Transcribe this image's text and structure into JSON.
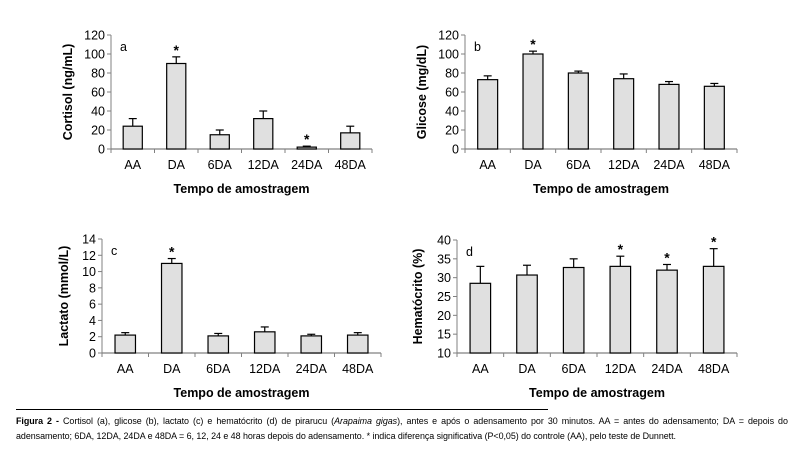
{
  "chart_data": [
    {
      "type": "bar",
      "panel": "a",
      "title": "",
      "xlabel": "Tempo de amostragem",
      "ylabel": "Cortisol (ng/mL)",
      "categories": [
        "AA",
        "DA",
        "6DA",
        "12DA",
        "24DA",
        "48DA"
      ],
      "values": [
        24,
        90,
        15,
        32,
        2,
        17
      ],
      "error_upper": [
        32,
        97,
        20,
        40,
        3,
        24
      ],
      "significant": [
        false,
        true,
        false,
        false,
        true,
        false
      ],
      "ylim": [
        0,
        120
      ],
      "yticks": [
        0,
        20,
        40,
        60,
        80,
        100,
        120
      ],
      "grid": false,
      "bar_color": "#e0e0e0",
      "annotation": "*"
    },
    {
      "type": "bar",
      "panel": "b",
      "title": "",
      "xlabel": "Tempo de amostragem",
      "ylabel": "Glicose (mg/dL)",
      "categories": [
        "AA",
        "DA",
        "6DA",
        "12DA",
        "24DA",
        "48DA"
      ],
      "values": [
        73,
        100,
        80,
        74,
        68,
        66
      ],
      "error_upper": [
        77,
        103,
        82,
        79,
        71,
        69
      ],
      "significant": [
        false,
        true,
        false,
        false,
        false,
        false
      ],
      "ylim": [
        0,
        120
      ],
      "yticks": [
        0,
        20,
        40,
        60,
        80,
        100,
        120
      ],
      "grid": false,
      "bar_color": "#e0e0e0",
      "annotation": "*"
    },
    {
      "type": "bar",
      "panel": "c",
      "title": "",
      "xlabel": "Tempo de amostragem",
      "ylabel": "Lactato (mmol/L)",
      "categories": [
        "AA",
        "DA",
        "6DA",
        "12DA",
        "24DA",
        "48DA"
      ],
      "values": [
        2.2,
        11.0,
        2.1,
        2.6,
        2.1,
        2.2
      ],
      "error_upper": [
        2.5,
        11.6,
        2.4,
        3.2,
        2.3,
        2.5
      ],
      "significant": [
        false,
        true,
        false,
        false,
        false,
        false
      ],
      "ylim": [
        0,
        14
      ],
      "yticks": [
        0,
        2,
        4,
        6,
        8,
        10,
        12,
        14
      ],
      "grid": false,
      "bar_color": "#e0e0e0",
      "annotation": "*"
    },
    {
      "type": "bar",
      "panel": "d",
      "title": "",
      "xlabel": "Tempo de amostragem",
      "ylabel": "Hematócrito (%)",
      "categories": [
        "AA",
        "DA",
        "6DA",
        "12DA",
        "24DA",
        "48DA"
      ],
      "values": [
        28.5,
        30.7,
        32.7,
        33.0,
        32.0,
        33.0
      ],
      "error_upper": [
        33.0,
        33.3,
        35.0,
        35.7,
        33.5,
        37.7
      ],
      "significant": [
        false,
        false,
        false,
        true,
        true,
        true
      ],
      "ylim": [
        10,
        40
      ],
      "yticks": [
        10,
        15,
        20,
        25,
        30,
        35,
        40
      ],
      "grid": false,
      "bar_color": "#e0e0e0",
      "annotation": "*"
    }
  ],
  "caption": {
    "label": "Figura 2 -",
    "text_before_italic": " Cortisol (a), glicose (b), lactato (c) e hematócrito (d) de pirarucu (",
    "italic": "Arapaima gigas",
    "text_after_italic": "), antes e após o adensamento por 30 minutos. AA = antes do adensamento; DA = depois do adensamento; 6DA, 12DA, 24DA e 48DA = 6, 12, 24 e 48 horas depois do adensamento. * indica diferença significativa (P<0,05) do controle (AA), pelo teste de Dunnett."
  }
}
